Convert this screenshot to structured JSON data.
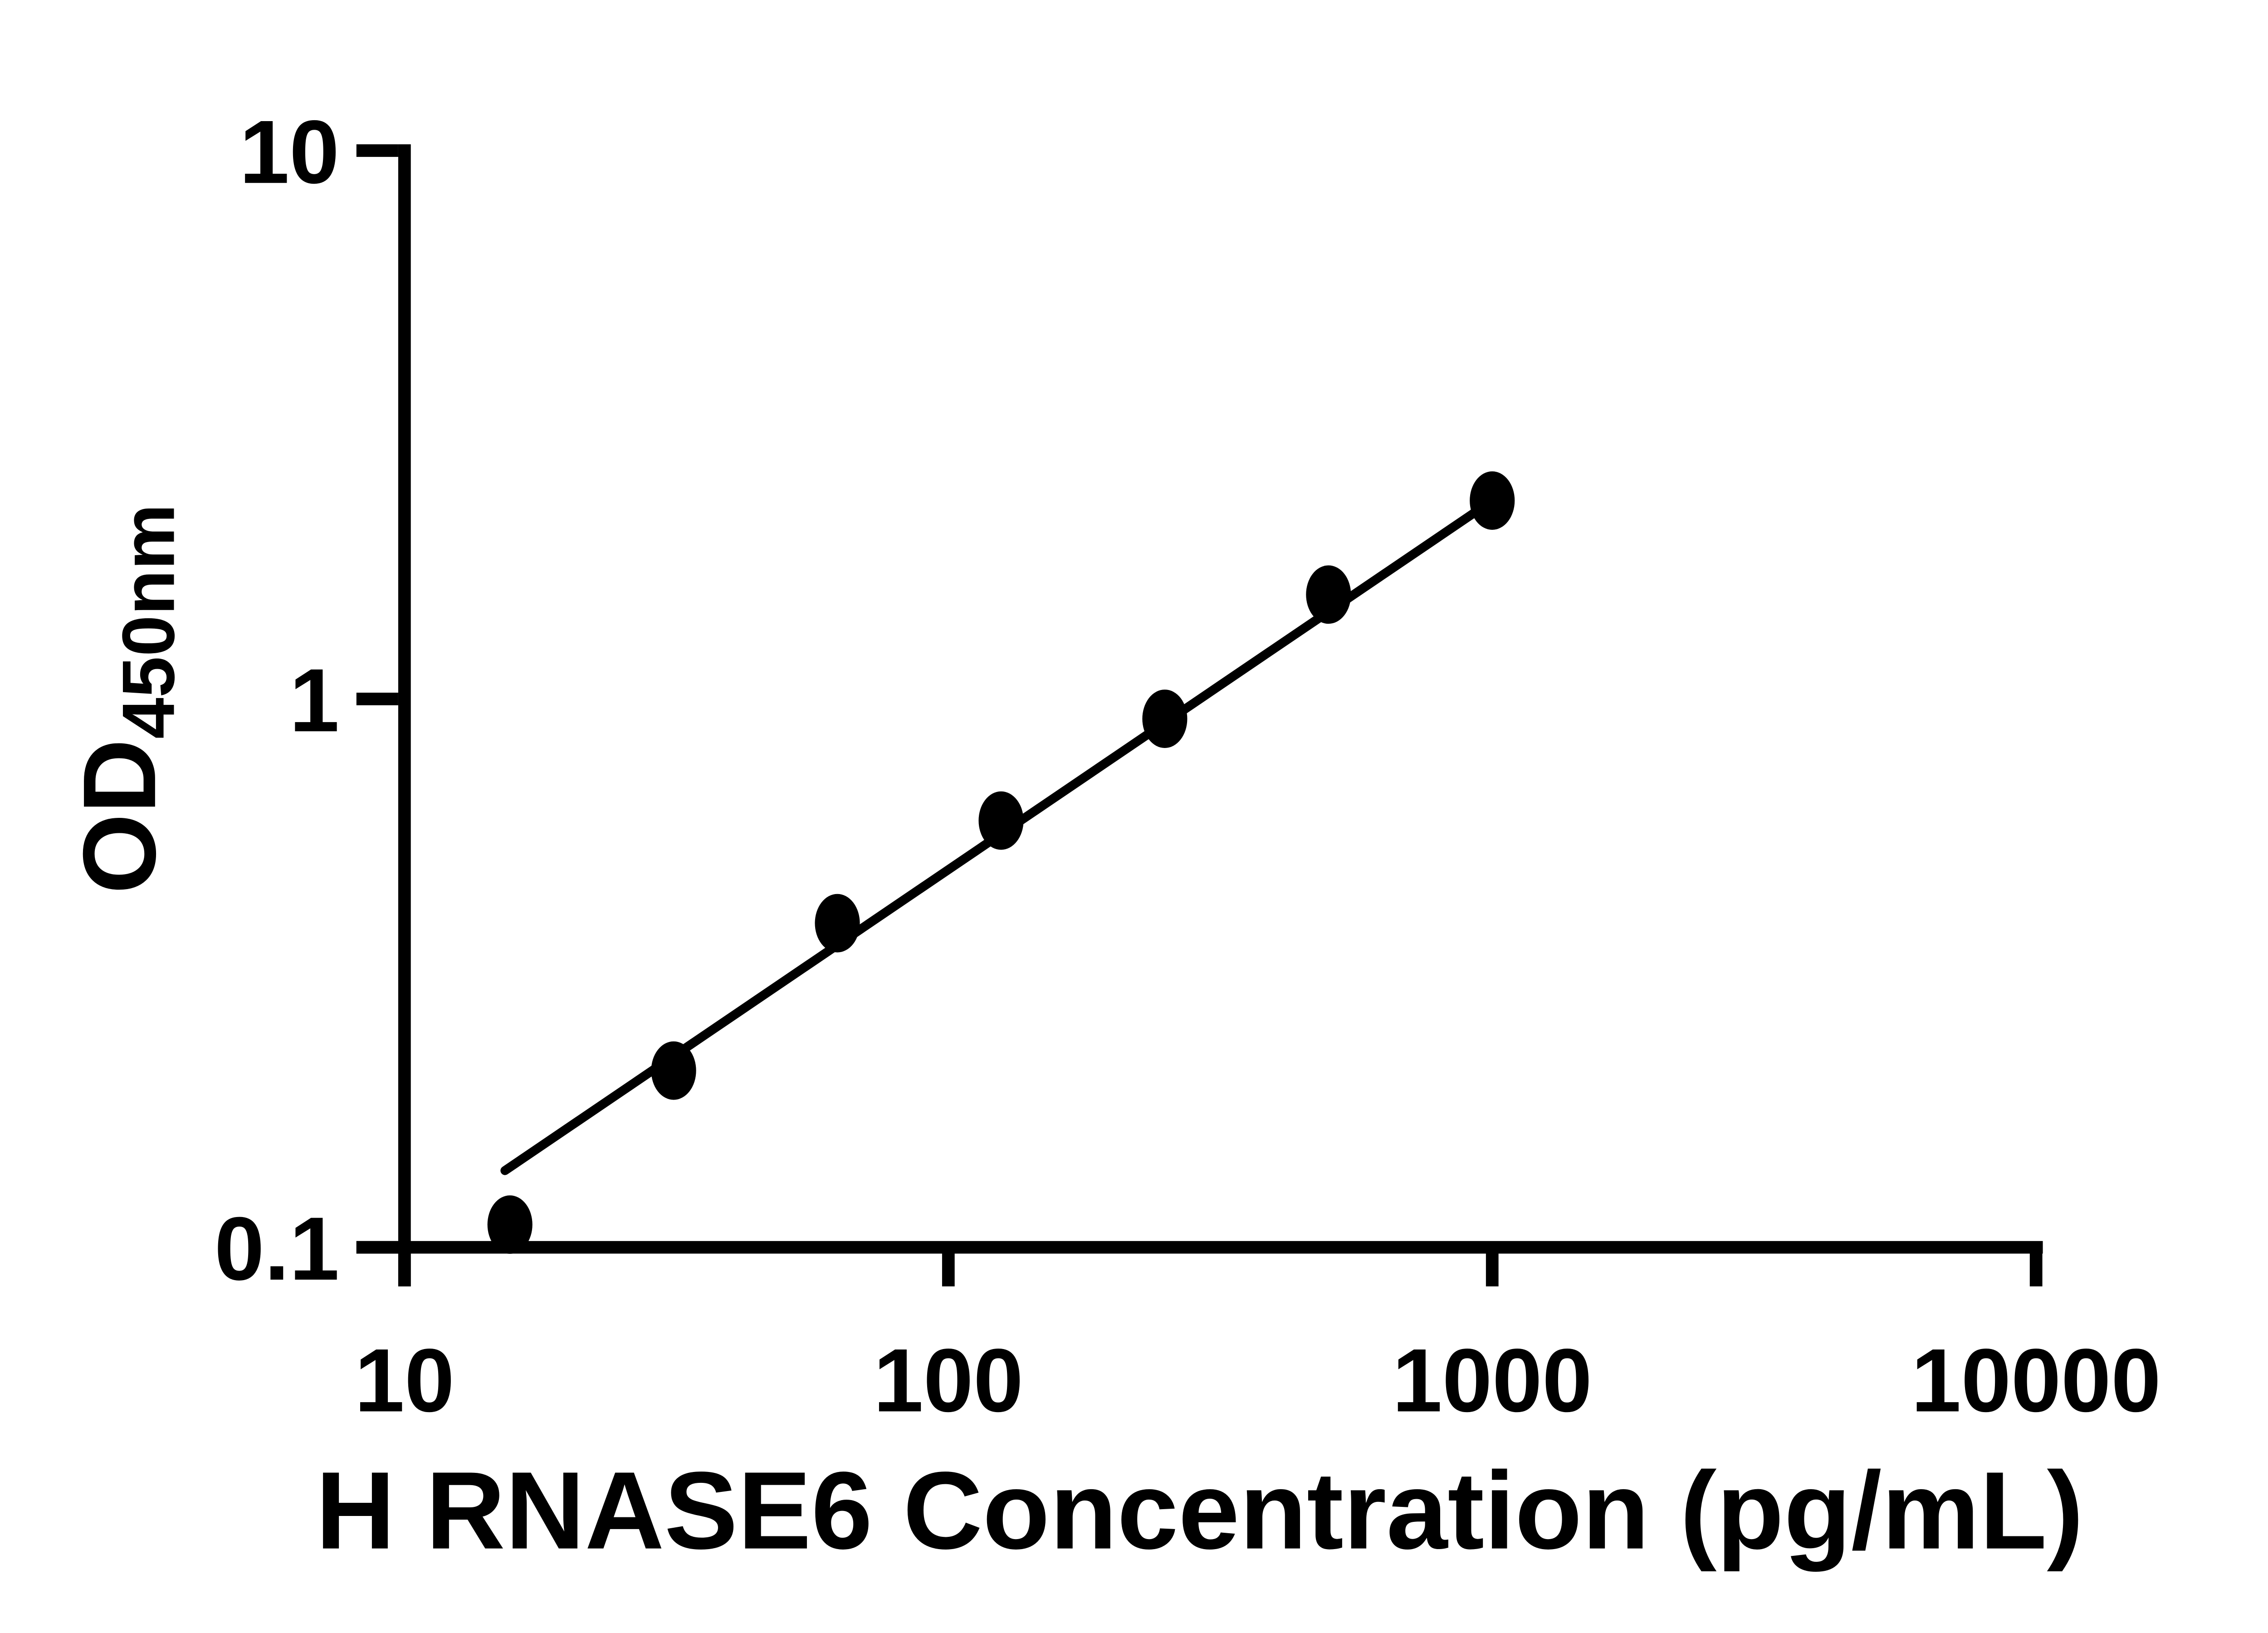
{
  "figure": {
    "background_color": "#ffffff",
    "ink_color": "#000000"
  },
  "chart_data": {
    "type": "scatter",
    "title": "",
    "xlabel": "H RNASE6 Concentration (pg/mL)",
    "ylabel_main": "OD",
    "ylabel_sub": "450nm",
    "x_scale": "log10",
    "y_scale": "log10",
    "xlim": [
      10,
      10000
    ],
    "ylim": [
      0.1,
      10
    ],
    "grid": false,
    "legend": false,
    "x_ticks": [
      {
        "value": 10,
        "label": "10"
      },
      {
        "value": 100,
        "label": "100"
      },
      {
        "value": 1000,
        "label": "1000"
      },
      {
        "value": 10000,
        "label": "10000"
      }
    ],
    "y_ticks": [
      {
        "value": 10,
        "label": "10"
      },
      {
        "value": 1,
        "label": "1"
      },
      {
        "value": 0.1,
        "label": "0.1"
      }
    ],
    "series": [
      {
        "name": "standard-curve-points",
        "marker": "filled-circle",
        "color": "#000000",
        "points": [
          {
            "x": 15.625,
            "y": 0.11
          },
          {
            "x": 31.25,
            "y": 0.21
          },
          {
            "x": 62.5,
            "y": 0.39
          },
          {
            "x": 125,
            "y": 0.6
          },
          {
            "x": 250,
            "y": 0.92
          },
          {
            "x": 500,
            "y": 1.55
          },
          {
            "x": 1000,
            "y": 2.3
          }
        ]
      }
    ],
    "fit_line": {
      "x1": 15.3,
      "y1": 0.138,
      "x2": 1000,
      "y2": 2.3,
      "color": "#000000"
    }
  }
}
